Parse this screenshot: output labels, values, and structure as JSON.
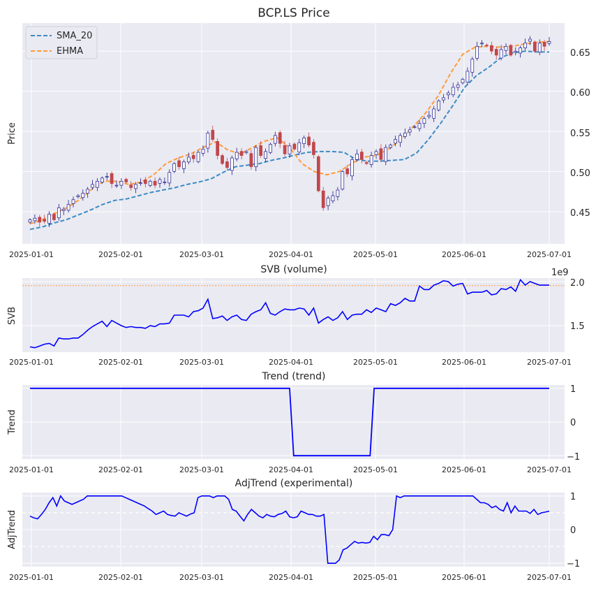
{
  "chart_data": [
    {
      "type": "candlestick",
      "title": "BCP.LS Price",
      "ylabel": "Price",
      "ylim": [
        0.41,
        0.685
      ],
      "yticks": [
        "0.45",
        "0.50",
        "0.55",
        "0.60",
        "0.65"
      ],
      "xticks": [
        "2025-01-01",
        "2025-02-01",
        "2025-03-01",
        "2025-04-01",
        "2025-05-01",
        "2025-06-01",
        "2025-07-01"
      ],
      "legend": {
        "location": "top-left",
        "entries": [
          "SMA_20",
          "EHMA"
        ]
      },
      "colors": {
        "up": "#1a1a8c",
        "down": "#c0474b",
        "sma": "#3d8bc4",
        "ehma": "#ff9a3c"
      },
      "candles_close": [
        0.44,
        0.442,
        0.437,
        0.438,
        0.447,
        0.44,
        0.455,
        0.453,
        0.459,
        0.465,
        0.47,
        0.473,
        0.478,
        0.484,
        0.488,
        0.492,
        0.494,
        0.485,
        0.483,
        0.488,
        0.487,
        0.48,
        0.484,
        0.486,
        0.485,
        0.488,
        0.483,
        0.49,
        0.487,
        0.499,
        0.51,
        0.506,
        0.512,
        0.518,
        0.516,
        0.524,
        0.528,
        0.548,
        0.54,
        0.52,
        0.51,
        0.505,
        0.517,
        0.524,
        0.52,
        0.525,
        0.506,
        0.53,
        0.52,
        0.525,
        0.534,
        0.545,
        0.535,
        0.522,
        0.532,
        0.528,
        0.536,
        0.542,
        0.533,
        0.521,
        0.476,
        0.455,
        0.467,
        0.47,
        0.477,
        0.5,
        0.497,
        0.515,
        0.522,
        0.515,
        0.51,
        0.52,
        0.525,
        0.515,
        0.53,
        0.533,
        0.54,
        0.545,
        0.548,
        0.552,
        0.556,
        0.56,
        0.566,
        0.57,
        0.578,
        0.588,
        0.592,
        0.598,
        0.605,
        0.608,
        0.615,
        0.625,
        0.64,
        0.656,
        0.66,
        0.657,
        0.65,
        0.645,
        0.652,
        0.656,
        0.645,
        0.65,
        0.654,
        0.66,
        0.665,
        0.65,
        0.66,
        0.656,
        0.662
      ],
      "sma_20": [
        0.428,
        0.431,
        0.436,
        0.44,
        0.446,
        0.452,
        0.459,
        0.464,
        0.466,
        0.47,
        0.474,
        0.477,
        0.48,
        0.484,
        0.487,
        0.491,
        0.499,
        0.506,
        0.508,
        0.51,
        0.514,
        0.517,
        0.521,
        0.524,
        0.525,
        0.525,
        0.524,
        0.515,
        0.513,
        0.513,
        0.514,
        0.515,
        0.523,
        0.54,
        0.56,
        0.582,
        0.605,
        0.62,
        0.63,
        0.642,
        0.648,
        0.65,
        0.649,
        0.649
      ],
      "ehma": [
        0.435,
        0.44,
        0.448,
        0.455,
        0.465,
        0.478,
        0.488,
        0.488,
        0.484,
        0.487,
        0.496,
        0.51,
        0.517,
        0.522,
        0.53,
        0.537,
        0.527,
        0.522,
        0.53,
        0.538,
        0.542,
        0.53,
        0.51,
        0.5,
        0.496,
        0.5,
        0.51,
        0.518,
        0.52,
        0.528,
        0.54,
        0.556,
        0.573,
        0.594,
        0.622,
        0.646,
        0.655,
        0.656,
        0.655,
        0.656,
        0.659,
        0.661,
        0.662
      ]
    },
    {
      "type": "line",
      "title": "SVB (volume)",
      "ylabel": "SVB",
      "multiplier_label": "1e9",
      "ylim": [
        1.2,
        2.04
      ],
      "yticks": [
        "1.5",
        "2.0"
      ],
      "reference_line": 1.955,
      "xticks": [
        "2025-01-01",
        "2025-02-01",
        "2025-03-01",
        "2025-04-01",
        "2025-05-01",
        "2025-06-01",
        "2025-07-01"
      ],
      "colors": {
        "line": "#0000ff",
        "ref": "#ff9a3c"
      },
      "values": [
        1.26,
        1.25,
        1.27,
        1.29,
        1.3,
        1.27,
        1.36,
        1.35,
        1.35,
        1.36,
        1.36,
        1.4,
        1.45,
        1.49,
        1.52,
        1.55,
        1.49,
        1.56,
        1.53,
        1.5,
        1.48,
        1.49,
        1.48,
        1.48,
        1.47,
        1.5,
        1.49,
        1.52,
        1.52,
        1.53,
        1.62,
        1.62,
        1.62,
        1.6,
        1.66,
        1.67,
        1.7,
        1.8,
        1.58,
        1.59,
        1.61,
        1.56,
        1.6,
        1.62,
        1.57,
        1.56,
        1.63,
        1.66,
        1.68,
        1.76,
        1.64,
        1.62,
        1.66,
        1.69,
        1.68,
        1.68,
        1.7,
        1.69,
        1.62,
        1.7,
        1.53,
        1.57,
        1.6,
        1.56,
        1.59,
        1.66,
        1.57,
        1.62,
        1.63,
        1.63,
        1.68,
        1.65,
        1.7,
        1.68,
        1.66,
        1.75,
        1.73,
        1.76,
        1.81,
        1.78,
        1.78,
        1.95,
        1.91,
        1.91,
        1.96,
        1.98,
        2.01,
        2.0,
        1.95,
        1.97,
        1.98,
        1.86,
        1.88,
        1.88,
        1.88,
        1.9,
        1.85,
        1.86,
        1.92,
        1.91,
        1.94,
        1.89,
        2.02,
        1.96,
        2.0,
        1.98,
        1.96,
        1.96,
        1.96
      ]
    },
    {
      "type": "line",
      "title": "Trend (trend)",
      "ylabel": "Trend",
      "ylim": [
        -1.1,
        1.1
      ],
      "yticks": [
        "1",
        "0",
        "−1"
      ],
      "xticks": [
        "2025-01-01",
        "2025-02-01",
        "2025-03-01",
        "2025-04-01",
        "2025-05-01",
        "2025-06-01",
        "2025-07-01"
      ],
      "colors": {
        "line": "#0000ff"
      },
      "points": [
        [
          0,
          1
        ],
        [
          64.5,
          1
        ],
        [
          65.5,
          -1
        ],
        [
          84.5,
          -1
        ],
        [
          85.5,
          1
        ],
        [
          129,
          1
        ]
      ]
    },
    {
      "type": "line",
      "title": "AdjTrend (experimental)",
      "ylabel": "AdjTrend",
      "ylim": [
        -1.1,
        1.1
      ],
      "yticks": [
        "1",
        "0",
        "−1"
      ],
      "reference_lines": [
        0.5,
        -0.5
      ],
      "xticks": [
        "2025-01-01",
        "2025-02-01",
        "2025-03-01",
        "2025-04-01",
        "2025-05-01",
        "2025-06-01",
        "2025-07-01"
      ],
      "colors": {
        "line": "#0000ff",
        "ref": "#ffffff"
      },
      "values": [
        0.4,
        0.35,
        0.32,
        0.45,
        0.6,
        0.8,
        0.95,
        0.7,
        1.0,
        0.85,
        0.8,
        0.75,
        0.8,
        0.85,
        0.9,
        1.0,
        1.0,
        1.0,
        1.0,
        1.0,
        1.0,
        1.0,
        1.0,
        1.0,
        1.0,
        0.95,
        0.9,
        0.85,
        0.8,
        0.75,
        0.7,
        0.62,
        0.55,
        0.45,
        0.5,
        0.55,
        0.45,
        0.42,
        0.4,
        0.5,
        0.45,
        0.4,
        0.46,
        0.5,
        0.95,
        1.0,
        1.0,
        1.0,
        0.95,
        1.0,
        1.0,
        1.0,
        0.9,
        0.6,
        0.55,
        0.4,
        0.26,
        0.45,
        0.6,
        0.5,
        0.4,
        0.35,
        0.45,
        0.4,
        0.38,
        0.45,
        0.48,
        0.55,
        0.38,
        0.35,
        0.38,
        0.55,
        0.5,
        0.45,
        0.45,
        0.4,
        0.4,
        0.45,
        -1.0,
        -1.0,
        -1.0,
        -0.9,
        -0.6,
        -0.55,
        -0.45,
        -0.35,
        -0.4,
        -0.38,
        -0.4,
        -0.38,
        -0.2,
        -0.3,
        -0.15,
        -0.15,
        -0.18,
        0.0,
        1.0,
        0.95,
        1.0,
        1.0,
        1.0,
        1.0,
        1.0,
        1.0,
        1.0,
        1.0,
        1.0,
        1.0,
        1.0,
        1.0,
        1.0,
        1.0,
        1.0,
        1.0,
        1.0,
        1.0,
        1.0,
        0.9,
        0.8,
        0.8,
        0.75,
        0.65,
        0.7,
        0.6,
        0.55,
        0.8,
        0.5,
        0.7,
        0.55,
        0.55,
        0.55,
        0.48,
        0.6,
        0.45,
        0.5,
        0.52,
        0.55
      ]
    }
  ]
}
